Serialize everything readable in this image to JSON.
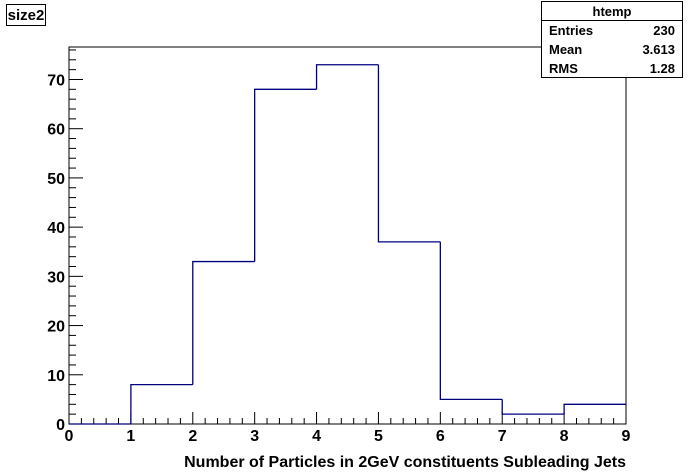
{
  "chart_data": {
    "type": "histogram",
    "title": "size2",
    "xlabel": "Number of Particles in 2GeV constituents Subleading Jets",
    "ylabel": "",
    "xlim": [
      0,
      9
    ],
    "ylim": [
      0,
      76.6
    ],
    "bin_edges": [
      0,
      1,
      2,
      3,
      4,
      5,
      6,
      7,
      8,
      9
    ],
    "values": [
      0,
      8,
      33,
      68,
      73,
      37,
      5,
      2,
      4
    ],
    "x_ticks": [
      "0",
      "1",
      "2",
      "3",
      "4",
      "5",
      "6",
      "7",
      "8",
      "9"
    ],
    "y_ticks": [
      0,
      10,
      20,
      30,
      40,
      50,
      60,
      70
    ],
    "line_color": "#000080",
    "grid": false,
    "legend": "none",
    "stats": {
      "name": "htemp",
      "rows": [
        {
          "label": "Entries",
          "value": "230"
        },
        {
          "label": "Mean",
          "value": "3.613"
        },
        {
          "label": "RMS",
          "value": "1.28"
        }
      ],
      "placement": "top-right"
    }
  }
}
